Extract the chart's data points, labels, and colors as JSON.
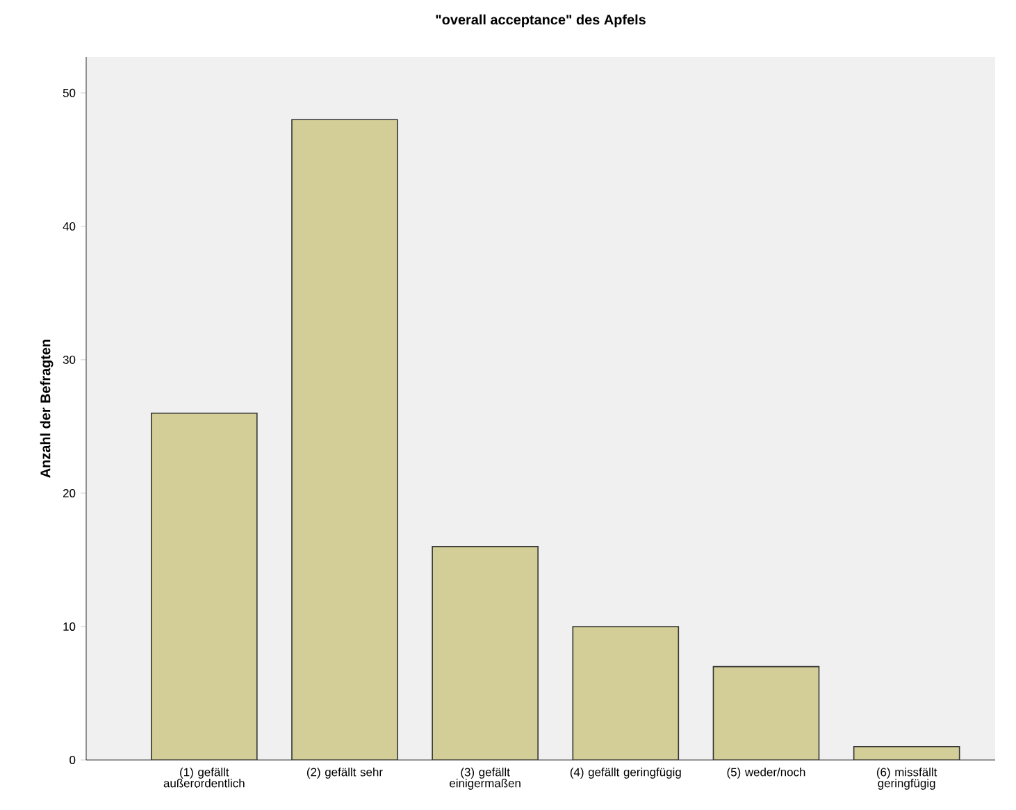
{
  "chart_data": {
    "type": "bar",
    "title": "\"overall acceptance\" des Apfels",
    "ylabel": "Anzahl der Befragten",
    "categories": [
      "(1) gefällt außerordentlich",
      "(2) gefällt sehr",
      "(3) gefällt einigermaßen",
      "(4) gefällt geringfügig",
      "(5) weder/noch",
      "(6) missfällt geringfügig"
    ],
    "values": [
      26,
      48,
      16,
      10,
      7,
      1
    ],
    "color": "#d3ce97",
    "ylim": [
      0,
      52.7
    ],
    "yticks": [
      0,
      10,
      20,
      30,
      40,
      50
    ],
    "grid": false
  }
}
